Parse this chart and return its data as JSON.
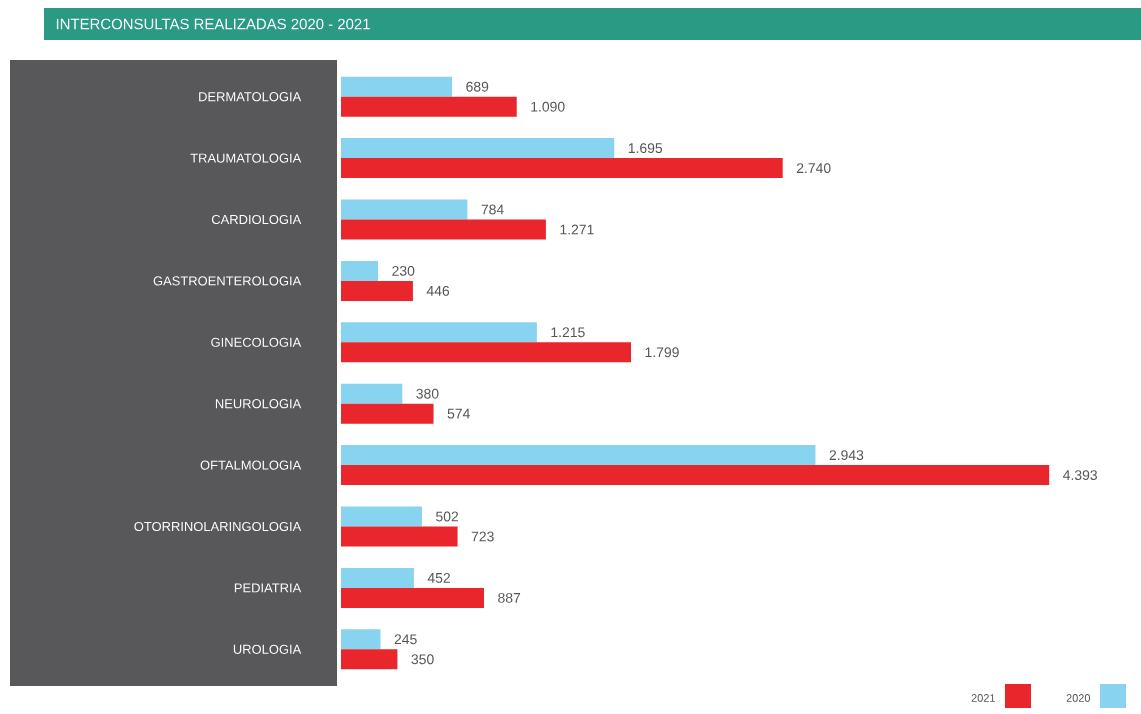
{
  "chart_data": {
    "type": "bar",
    "orientation": "horizontal",
    "title": "INTERCONSULTAS REALIZADAS 2020 - 2021",
    "categories": [
      "DERMATOLOGIA",
      "TRAUMATOLOGIA",
      "CARDIOLOGIA",
      "GASTROENTEROLOGIA",
      "GINECOLOGIA",
      "NEUROLOGIA",
      "OFTALMOLOGIA",
      "OTORRINOLARINGOLOGIA",
      "PEDIATRIA",
      "UROLOGIA"
    ],
    "series": [
      {
        "name": "2020",
        "color": "#87d3f0",
        "values": [
          689,
          1695,
          784,
          230,
          1215,
          380,
          2943,
          502,
          452,
          245
        ],
        "value_labels": [
          "689",
          "1.695",
          "784",
          "230",
          "1.215",
          "380",
          "2.943",
          "502",
          "452",
          "245"
        ]
      },
      {
        "name": "2021",
        "color": "#e8262b",
        "values": [
          1090,
          2740,
          1271,
          446,
          1799,
          574,
          4393,
          723,
          887,
          350
        ],
        "value_labels": [
          "1.090",
          "2.740",
          "1.271",
          "446",
          "1.799",
          "574",
          "4.393",
          "723",
          "887",
          "350"
        ]
      }
    ],
    "legend": "bottom right"
  }
}
